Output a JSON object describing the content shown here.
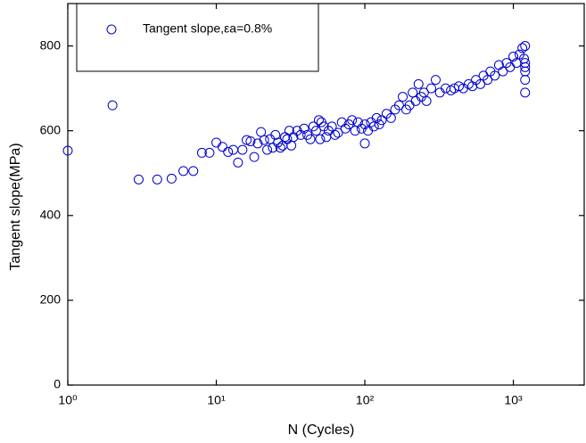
{
  "chart_data": {
    "type": "scatter",
    "x_label": "N (Cycles)",
    "y_label": "Tangent slope(MPa)",
    "xscale": "log",
    "xlim": [
      1,
      3000
    ],
    "ylim": [
      0,
      900
    ],
    "xticks": [
      {
        "value": 1,
        "label": "10⁰"
      },
      {
        "value": 10,
        "label": "10¹"
      },
      {
        "value": 100,
        "label": "10²"
      },
      {
        "value": 1000,
        "label": "10³"
      }
    ],
    "yticks": [
      0,
      200,
      400,
      600,
      800
    ],
    "legend": "top-left",
    "series": [
      {
        "name": "Tangent slope,εa=0.8%",
        "color": "#0000cc",
        "x": [
          1,
          2,
          3,
          4,
          5,
          6,
          7,
          8,
          9,
          10,
          11,
          12,
          13,
          14,
          15,
          16,
          17,
          18,
          19,
          20,
          21,
          22,
          23,
          24,
          25,
          26,
          27,
          28,
          29,
          30,
          31,
          32,
          33,
          35,
          37,
          39,
          41,
          43,
          45,
          47,
          49,
          50,
          51,
          53,
          55,
          57,
          60,
          63,
          66,
          70,
          74,
          78,
          82,
          86,
          90,
          95,
          100,
          100,
          105,
          110,
          115,
          120,
          125,
          130,
          140,
          150,
          160,
          170,
          180,
          190,
          200,
          210,
          220,
          230,
          240,
          250,
          260,
          280,
          300,
          320,
          350,
          380,
          400,
          430,
          460,
          500,
          530,
          560,
          600,
          630,
          670,
          700,
          750,
          800,
          850,
          900,
          950,
          1000,
          1050,
          1100,
          1150,
          1180,
          1200,
          1200,
          1200,
          1200,
          1200,
          1200
        ],
        "values": [
          553,
          660,
          485,
          485,
          487,
          505,
          505,
          548,
          548,
          572,
          562,
          550,
          555,
          525,
          555,
          578,
          575,
          538,
          570,
          597,
          578,
          555,
          580,
          560,
          590,
          572,
          560,
          565,
          585,
          580,
          600,
          565,
          585,
          600,
          590,
          605,
          590,
          580,
          610,
          600,
          625,
          580,
          620,
          610,
          585,
          600,
          610,
          590,
          595,
          620,
          605,
          615,
          625,
          600,
          620,
          605,
          615,
          570,
          600,
          620,
          610,
          630,
          615,
          625,
          640,
          630,
          650,
          660,
          680,
          650,
          660,
          690,
          670,
          710,
          680,
          690,
          670,
          700,
          720,
          690,
          700,
          695,
          700,
          705,
          700,
          710,
          705,
          720,
          710,
          730,
          720,
          740,
          730,
          755,
          740,
          760,
          750,
          775,
          760,
          780,
          795,
          770,
          760,
          740,
          720,
          690,
          800,
          750
        ]
      }
    ]
  }
}
